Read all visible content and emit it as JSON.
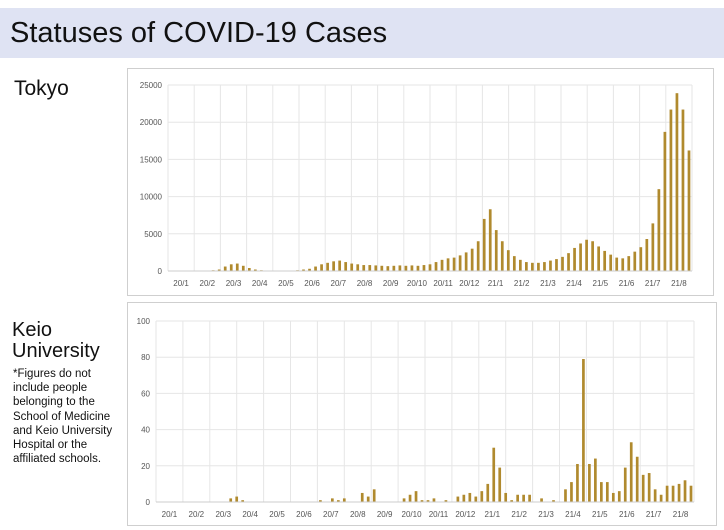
{
  "page": {
    "title": "Statuses of COVID-19 Cases"
  },
  "labels": {
    "tokyo": "Tokyo",
    "keio": "Keio University",
    "note": "*Figures do not include people belonging to the School of Medicine and Keio University Hospital or the affiliated schools."
  },
  "colors": {
    "bar": "#b08a2e",
    "grid": "#e6e6e6",
    "header_bg": "#dfe3f3"
  },
  "chart_data": [
    {
      "type": "bar",
      "title": "",
      "ylim": [
        0,
        25000
      ],
      "yticks": [
        0,
        5000,
        10000,
        15000,
        20000,
        25000
      ],
      "xtick_labels": [
        "20/1",
        "20/2",
        "20/3",
        "20/4",
        "20/5",
        "20/6",
        "20/7",
        "20/8",
        "20/9",
        "20/10",
        "20/11",
        "20/12",
        "21/1",
        "21/2",
        "21/3",
        "21/4",
        "21/5",
        "21/6",
        "21/7",
        "21/8"
      ],
      "grid": true,
      "values": [
        5,
        5,
        10,
        10,
        20,
        30,
        50,
        100,
        200,
        600,
        900,
        1000,
        700,
        400,
        200,
        100,
        50,
        40,
        40,
        50,
        60,
        100,
        200,
        300,
        600,
        900,
        1100,
        1300,
        1400,
        1200,
        1000,
        900,
        800,
        800,
        750,
        700,
        650,
        700,
        750,
        700,
        750,
        700,
        800,
        900,
        1200,
        1500,
        1700,
        1800,
        2100,
        2500,
        3000,
        4000,
        7000,
        8300,
        5500,
        4000,
        2800,
        2000,
        1500,
        1200,
        1100,
        1100,
        1200,
        1400,
        1600,
        1900,
        2400,
        3100,
        3700,
        4200,
        4000,
        3300,
        2700,
        2200,
        1800,
        1700,
        2000,
        2600,
        3200,
        4300,
        6400,
        11000,
        18700,
        21700,
        23900,
        21700,
        16200
      ]
    },
    {
      "type": "bar",
      "title": "",
      "ylim": [
        0,
        100
      ],
      "yticks": [
        0,
        20,
        40,
        60,
        80,
        100
      ],
      "xtick_labels": [
        "20/1",
        "20/2",
        "20/3",
        "20/4",
        "20/5",
        "20/6",
        "20/7",
        "20/8",
        "20/9",
        "20/10",
        "20/11",
        "20/12",
        "21/1",
        "21/2",
        "21/3",
        "21/4",
        "21/5",
        "21/6",
        "21/7",
        "21/8"
      ],
      "grid": true,
      "values": [
        0,
        0,
        0,
        0,
        0,
        0,
        0,
        0,
        0,
        0,
        0,
        0,
        2,
        3,
        1,
        0,
        0,
        0,
        0,
        0,
        0,
        0,
        0,
        0,
        0,
        0,
        0,
        1,
        0,
        2,
        1,
        2,
        0,
        0,
        5,
        3,
        7,
        0,
        0,
        0,
        0,
        2,
        4,
        6,
        1,
        1,
        2,
        0,
        1,
        0,
        3,
        4,
        5,
        3,
        6,
        10,
        30,
        19,
        5,
        1,
        4,
        4,
        4,
        0,
        2,
        0,
        1,
        0,
        7,
        11,
        21,
        79,
        21,
        24,
        11,
        11,
        5,
        6,
        19,
        33,
        25,
        15,
        16,
        7,
        4,
        9,
        9,
        10,
        12,
        9
      ]
    }
  ]
}
